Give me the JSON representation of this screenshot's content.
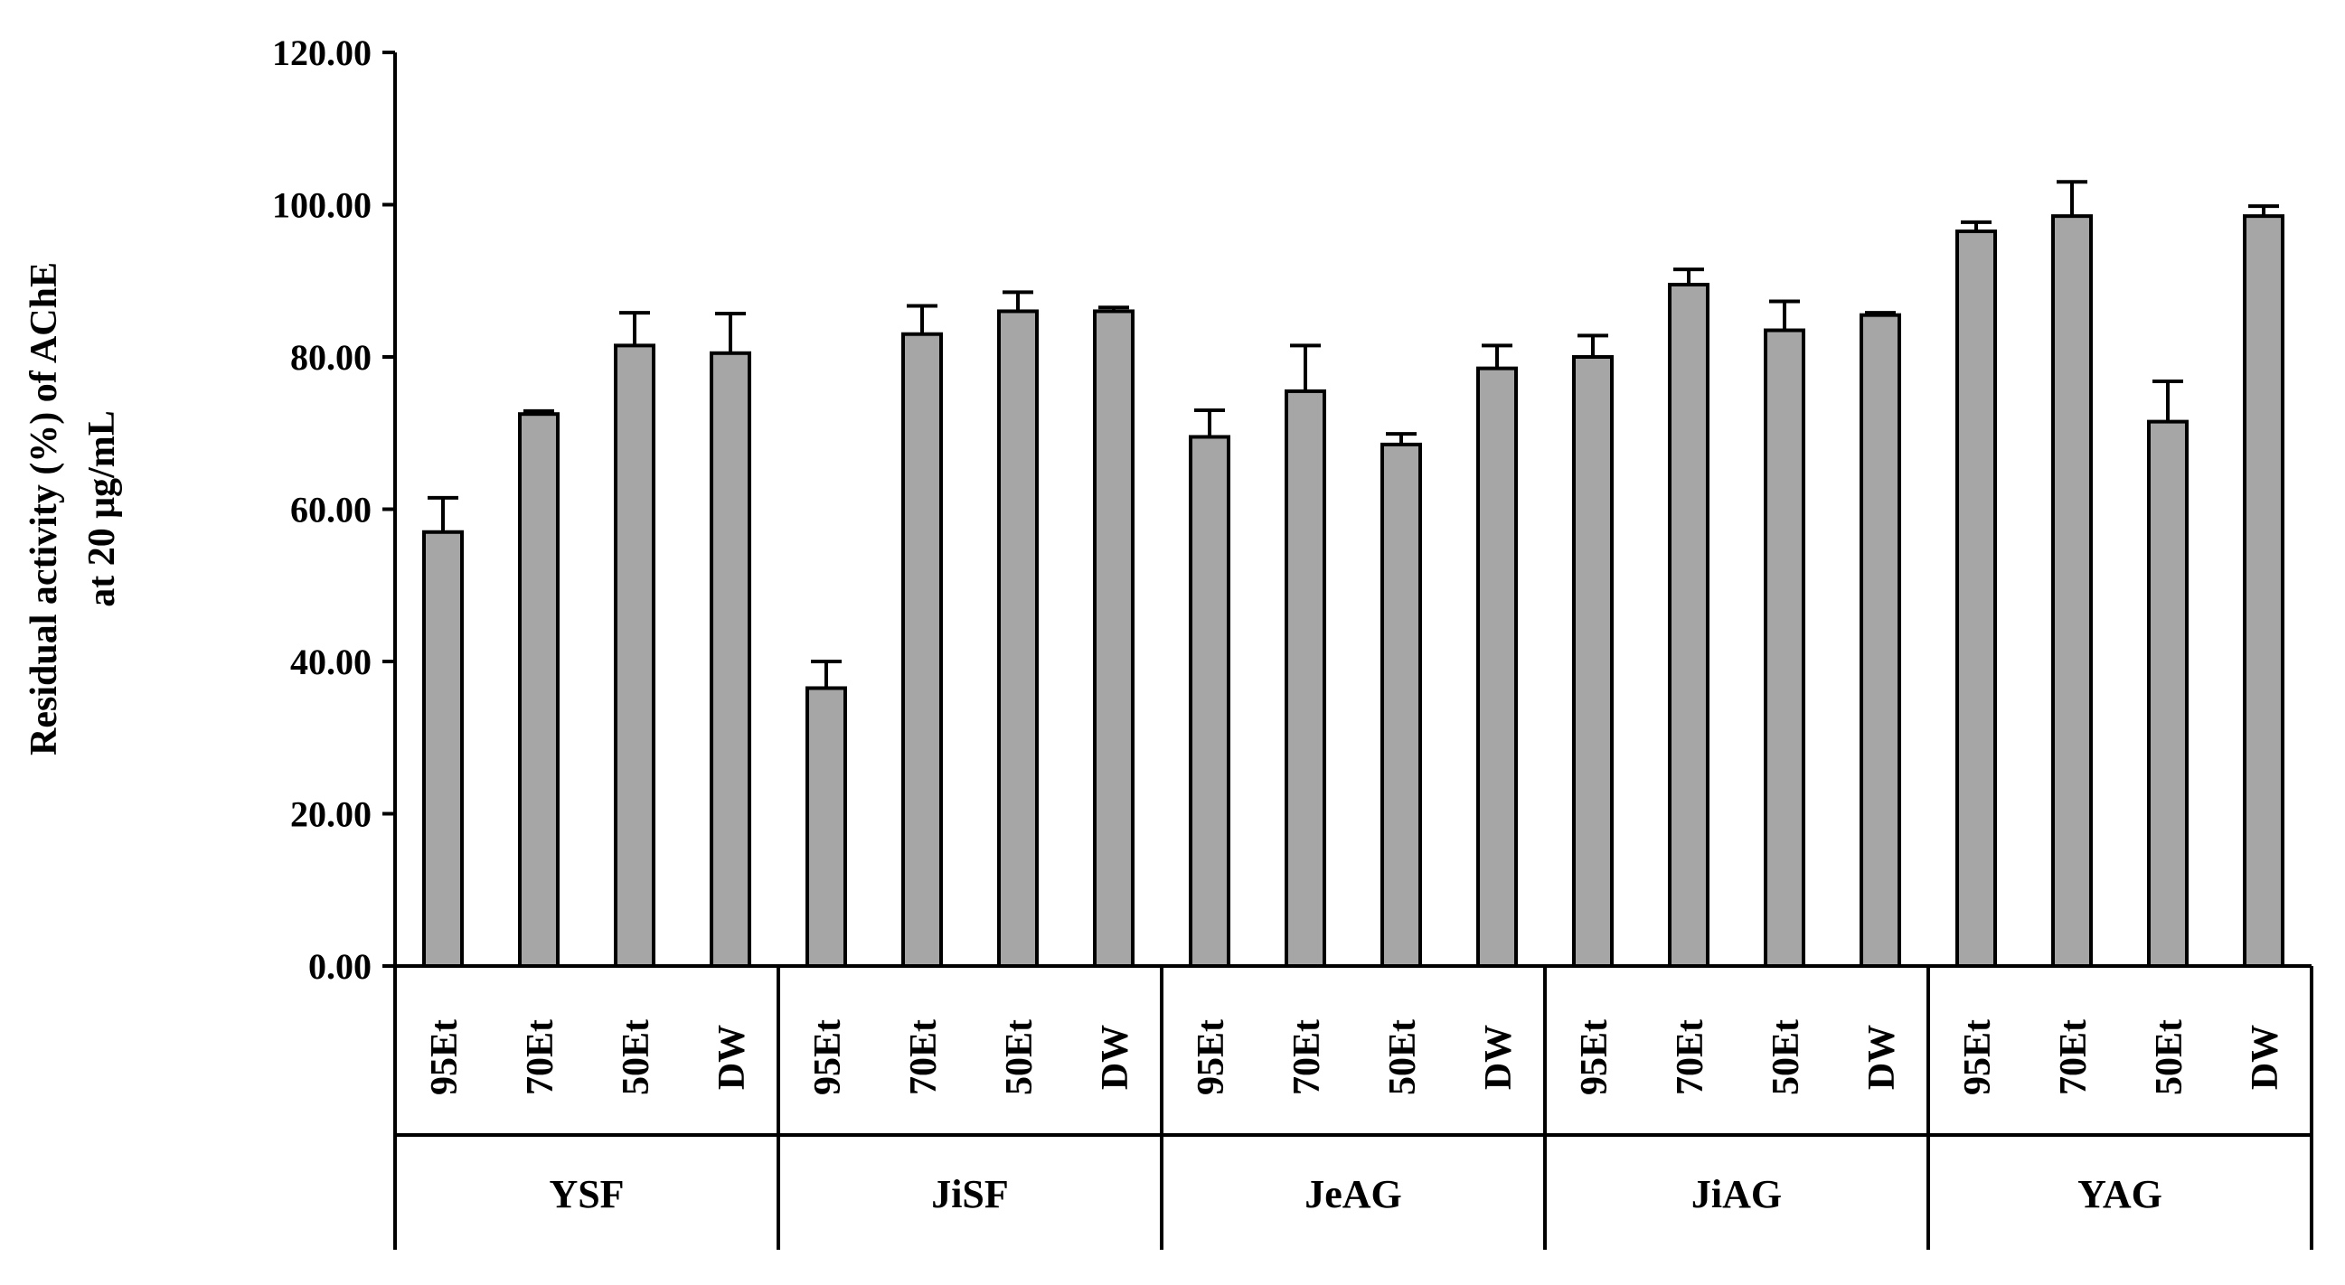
{
  "chart_data": {
    "type": "bar",
    "title": "",
    "xlabel": "",
    "ylabel": [
      "Residual activity (%) of AChE",
      "at 20 μg/mL"
    ],
    "ylim": [
      0,
      120
    ],
    "yticks": [
      "0.00",
      "20.00",
      "40.00",
      "60.00",
      "80.00",
      "100.00",
      "120.00"
    ],
    "groups": [
      {
        "name": "YSF",
        "categories": [
          "95Et",
          "70Et",
          "50Et",
          "DW"
        ],
        "values": [
          57.0,
          72.5,
          81.5,
          80.5
        ],
        "errors": [
          4.5,
          0.4,
          4.3,
          5.2
        ]
      },
      {
        "name": "JiSF",
        "categories": [
          "95Et",
          "70Et",
          "50Et",
          "DW"
        ],
        "values": [
          36.5,
          83.0,
          86.0,
          86.0
        ],
        "errors": [
          3.5,
          3.7,
          2.5,
          0.5
        ]
      },
      {
        "name": "JeAG",
        "categories": [
          "95Et",
          "70Et",
          "50Et",
          "DW"
        ],
        "values": [
          69.5,
          75.5,
          68.5,
          78.5
        ],
        "errors": [
          3.5,
          6.0,
          1.4,
          3.0
        ]
      },
      {
        "name": "JiAG",
        "categories": [
          "95Et",
          "70Et",
          "50Et",
          "DW"
        ],
        "values": [
          80.0,
          89.5,
          83.5,
          85.5
        ],
        "errors": [
          2.8,
          2.0,
          3.8,
          0.3
        ]
      },
      {
        "name": "YAG",
        "categories": [
          "95Et",
          "70Et",
          "50Et",
          "DW"
        ],
        "values": [
          96.5,
          98.5,
          71.5,
          98.5
        ],
        "errors": [
          1.2,
          4.5,
          5.3,
          1.3
        ]
      }
    ],
    "bar_color": "#a6a6a6",
    "edge_color": "#000000",
    "grid": false,
    "legend": "none"
  }
}
